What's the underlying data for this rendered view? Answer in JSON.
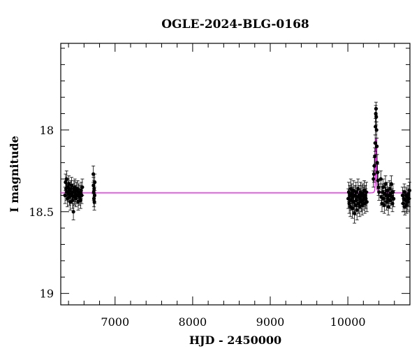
{
  "chart_data": {
    "type": "scatter",
    "title": "OGLE-2024-BLG-0168",
    "xlabel": "HJD - 2450000",
    "ylabel": "I magnitude",
    "xlim": [
      6300,
      10800
    ],
    "ylim": [
      17.47,
      19.07
    ],
    "y_inverted": true,
    "grid": false,
    "x_ticks": [
      {
        "value": 7000,
        "label": "7000"
      },
      {
        "value": 8000,
        "label": "8000"
      },
      {
        "value": 9000,
        "label": "9000"
      },
      {
        "value": 10000,
        "label": "10000"
      }
    ],
    "x_minor_step": 200,
    "y_ticks": [
      {
        "value": 18.0,
        "label": "18"
      },
      {
        "value": 18.5,
        "label": "18.5"
      },
      {
        "value": 19.0,
        "label": "19"
      }
    ],
    "y_minor_step": 0.1,
    "colors": {
      "points": "#000000",
      "model": "#ff00ff",
      "frame": "#000000"
    },
    "series": [
      {
        "kind": "observations",
        "points": [
          [
            6355,
            18.4,
            0.05
          ],
          [
            6362,
            18.32,
            0.05
          ],
          [
            6368,
            18.36,
            0.05
          ],
          [
            6375,
            18.3,
            0.05
          ],
          [
            6380,
            18.38,
            0.05
          ],
          [
            6386,
            18.42,
            0.05
          ],
          [
            6392,
            18.35,
            0.05
          ],
          [
            6398,
            18.39,
            0.05
          ],
          [
            6405,
            18.33,
            0.05
          ],
          [
            6410,
            18.41,
            0.05
          ],
          [
            6416,
            18.37,
            0.05
          ],
          [
            6422,
            18.44,
            0.05
          ],
          [
            6428,
            18.36,
            0.05
          ],
          [
            6435,
            18.39,
            0.05
          ],
          [
            6440,
            18.34,
            0.05
          ],
          [
            6446,
            18.4,
            0.05
          ],
          [
            6452,
            18.43,
            0.05
          ],
          [
            6458,
            18.38,
            0.05
          ],
          [
            6463,
            18.5,
            0.05
          ],
          [
            6470,
            18.36,
            0.05
          ],
          [
            6476,
            18.41,
            0.05
          ],
          [
            6482,
            18.35,
            0.05
          ],
          [
            6488,
            18.39,
            0.05
          ],
          [
            6495,
            18.42,
            0.05
          ],
          [
            6502,
            18.37,
            0.05
          ],
          [
            6510,
            18.4,
            0.05
          ],
          [
            6518,
            18.36,
            0.05
          ],
          [
            6525,
            18.44,
            0.05
          ],
          [
            6532,
            18.38,
            0.05
          ],
          [
            6540,
            18.41,
            0.05
          ],
          [
            6548,
            18.39,
            0.05
          ],
          [
            6556,
            18.43,
            0.05
          ],
          [
            6562,
            18.37,
            0.05
          ],
          [
            6570,
            18.4,
            0.05
          ],
          [
            6578,
            18.35,
            0.05
          ],
          [
            6720,
            18.27,
            0.05
          ],
          [
            6722,
            18.34,
            0.05
          ],
          [
            6725,
            18.38,
            0.05
          ],
          [
            6728,
            18.42,
            0.05
          ],
          [
            6730,
            18.36,
            0.05
          ],
          [
            6733,
            18.44,
            0.05
          ],
          [
            6736,
            18.4,
            0.05
          ],
          [
            6738,
            18.32,
            0.05
          ],
          [
            10005,
            18.42,
            0.06
          ],
          [
            10012,
            18.38,
            0.06
          ],
          [
            10018,
            18.45,
            0.06
          ],
          [
            10025,
            18.4,
            0.06
          ],
          [
            10032,
            18.47,
            0.06
          ],
          [
            10038,
            18.36,
            0.06
          ],
          [
            10045,
            18.43,
            0.06
          ],
          [
            10052,
            18.39,
            0.06
          ],
          [
            10058,
            18.48,
            0.06
          ],
          [
            10065,
            18.41,
            0.06
          ],
          [
            10072,
            18.37,
            0.06
          ],
          [
            10078,
            18.44,
            0.06
          ],
          [
            10085,
            18.51,
            0.06
          ],
          [
            10092,
            18.4,
            0.06
          ],
          [
            10098,
            18.46,
            0.06
          ],
          [
            10105,
            18.38,
            0.06
          ],
          [
            10112,
            18.43,
            0.06
          ],
          [
            10118,
            18.49,
            0.06
          ],
          [
            10125,
            18.41,
            0.06
          ],
          [
            10132,
            18.36,
            0.06
          ],
          [
            10138,
            18.45,
            0.06
          ],
          [
            10145,
            18.4,
            0.06
          ],
          [
            10152,
            18.47,
            0.06
          ],
          [
            10158,
            18.42,
            0.06
          ],
          [
            10165,
            18.38,
            0.06
          ],
          [
            10172,
            18.44,
            0.06
          ],
          [
            10178,
            18.4,
            0.06
          ],
          [
            10185,
            18.46,
            0.06
          ],
          [
            10192,
            18.39,
            0.06
          ],
          [
            10198,
            18.43,
            0.06
          ],
          [
            10205,
            18.41,
            0.06
          ],
          [
            10212,
            18.37,
            0.06
          ],
          [
            10218,
            18.45,
            0.06
          ],
          [
            10225,
            18.4,
            0.06
          ],
          [
            10232,
            18.42,
            0.06
          ],
          [
            10238,
            18.38,
            0.06
          ],
          [
            10245,
            18.44,
            0.06
          ],
          [
            10330,
            18.3,
            0.05
          ],
          [
            10336,
            18.27,
            0.05
          ],
          [
            10342,
            18.22,
            0.05
          ],
          [
            10348,
            18.16,
            0.05
          ],
          [
            10352,
            18.08,
            0.05
          ],
          [
            10356,
            17.98,
            0.05
          ],
          [
            10360,
            17.9,
            0.05
          ],
          [
            10363,
            17.87,
            0.04
          ],
          [
            10366,
            17.92,
            0.05
          ],
          [
            10370,
            18.0,
            0.05
          ],
          [
            10374,
            18.1,
            0.05
          ],
          [
            10378,
            18.2,
            0.05
          ],
          [
            10382,
            18.26,
            0.05
          ],
          [
            10388,
            18.31,
            0.05
          ],
          [
            10395,
            18.35,
            0.05
          ],
          [
            10402,
            18.38,
            0.05
          ],
          [
            10425,
            18.3,
            0.05
          ],
          [
            10432,
            18.41,
            0.05
          ],
          [
            10440,
            18.45,
            0.05
          ],
          [
            10448,
            18.38,
            0.05
          ],
          [
            10455,
            18.35,
            0.05
          ],
          [
            10462,
            18.42,
            0.05
          ],
          [
            10470,
            18.46,
            0.05
          ],
          [
            10478,
            18.39,
            0.05
          ],
          [
            10485,
            18.33,
            0.05
          ],
          [
            10492,
            18.4,
            0.05
          ],
          [
            10500,
            18.44,
            0.05
          ],
          [
            10508,
            18.37,
            0.05
          ],
          [
            10515,
            18.42,
            0.05
          ],
          [
            10522,
            18.47,
            0.05
          ],
          [
            10530,
            18.4,
            0.05
          ],
          [
            10538,
            18.36,
            0.05
          ],
          [
            10545,
            18.43,
            0.05
          ],
          [
            10552,
            18.39,
            0.05
          ],
          [
            10560,
            18.33,
            0.05
          ],
          [
            10568,
            18.41,
            0.05
          ],
          [
            10575,
            18.45,
            0.05
          ],
          [
            10582,
            18.38,
            0.05
          ],
          [
            10590,
            18.42,
            0.05
          ],
          [
            10705,
            18.4,
            0.05
          ],
          [
            10712,
            18.45,
            0.05
          ],
          [
            10720,
            18.42,
            0.05
          ],
          [
            10728,
            18.38,
            0.05
          ],
          [
            10735,
            18.47,
            0.05
          ],
          [
            10742,
            18.43,
            0.05
          ],
          [
            10750,
            18.4,
            0.05
          ],
          [
            10758,
            18.46,
            0.05
          ],
          [
            10765,
            18.41,
            0.05
          ],
          [
            10772,
            18.44,
            0.05
          ],
          [
            10780,
            18.39,
            0.05
          ],
          [
            10788,
            18.42,
            0.05
          ],
          [
            10795,
            18.37,
            0.05
          ]
        ]
      },
      {
        "kind": "model",
        "baseline": 18.385,
        "peak_time": 10363,
        "peak_mag": 17.88,
        "tE": 10,
        "u0": 0.08
      }
    ]
  }
}
